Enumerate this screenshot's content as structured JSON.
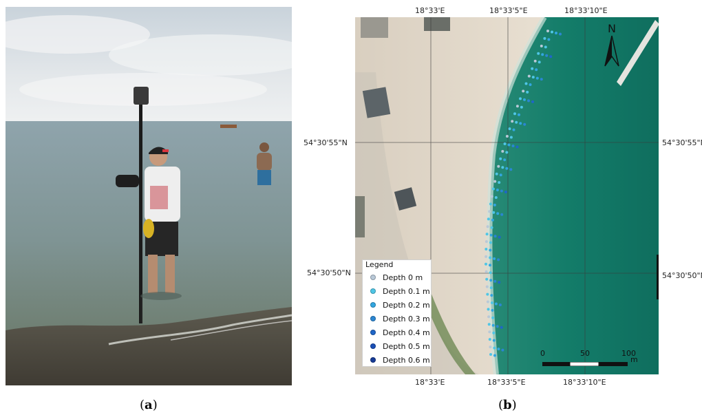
{
  "panel_a": {
    "caption_open": "(",
    "caption_letter": "a",
    "caption_close": ")"
  },
  "panel_b": {
    "caption_open": "(",
    "caption_letter": "b",
    "caption_close": ")",
    "top_longitudes": [
      "18°33'E",
      "18°33'5\"E",
      "18°33'10\"E"
    ],
    "bottom_longitudes": [
      "18°33'E",
      "18°33'5\"E",
      "18°33'10\"E"
    ],
    "left_latitudes": [
      "54°30'55\"N",
      "54°30'50\"N"
    ],
    "right_latitudes": [
      "54°30'55\"N",
      "54°30'50\"N"
    ],
    "north_label": "N",
    "legend": {
      "title": "Legend",
      "items": [
        {
          "label": "Depth 0 m",
          "color": "#b9c9d8"
        },
        {
          "label": "Depth 0.1 m",
          "color": "#4fc6e6"
        },
        {
          "label": "Depth 0.2 m",
          "color": "#32a6e0"
        },
        {
          "label": "Depth 0.3 m",
          "color": "#2b86d2"
        },
        {
          "label": "Depth 0.4 m",
          "color": "#1f66c8"
        },
        {
          "label": "Depth 0.5 m",
          "color": "#1a4fb6"
        },
        {
          "label": "Depth 0.6 m",
          "color": "#163b96"
        }
      ]
    },
    "scale": {
      "ticks": [
        "0",
        "50",
        "100"
      ],
      "unit": "m"
    }
  }
}
